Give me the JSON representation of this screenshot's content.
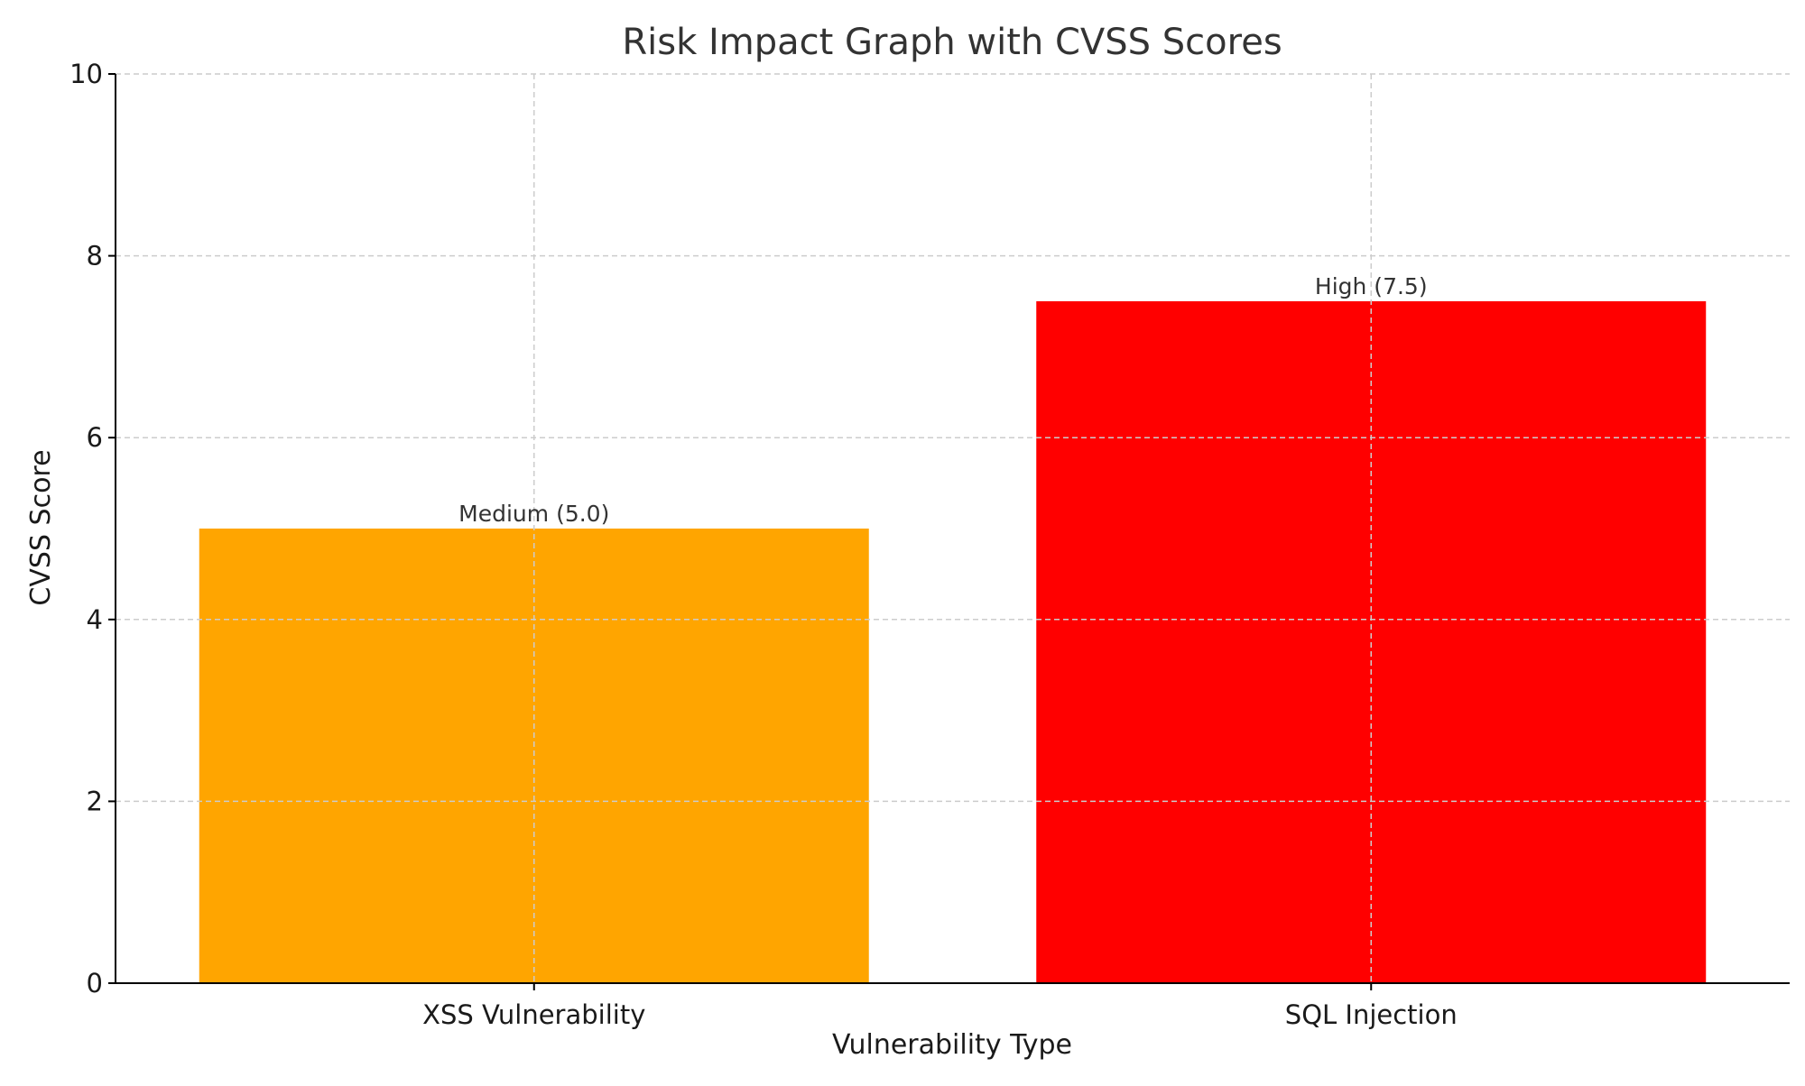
{
  "chart_data": {
    "type": "bar",
    "title": "Risk Impact Graph with CVSS Scores",
    "xlabel": "Vulnerability Type",
    "ylabel": "CVSS Score",
    "categories": [
      "XSS Vulnerability",
      "SQL Injection"
    ],
    "values": [
      5.0,
      7.5
    ],
    "bar_labels": [
      "Medium (5.0)",
      "High (7.5)"
    ],
    "colors": [
      "#FFA500",
      "#FF0000"
    ],
    "ylim": [
      0,
      10
    ],
    "yticks": [
      0,
      2,
      4,
      6,
      8,
      10
    ],
    "ytick_labels": [
      "0",
      "2",
      "4",
      "6",
      "8",
      "10"
    ],
    "grid": true,
    "grid_style": "dashed",
    "grid_color": "#cccccc"
  }
}
